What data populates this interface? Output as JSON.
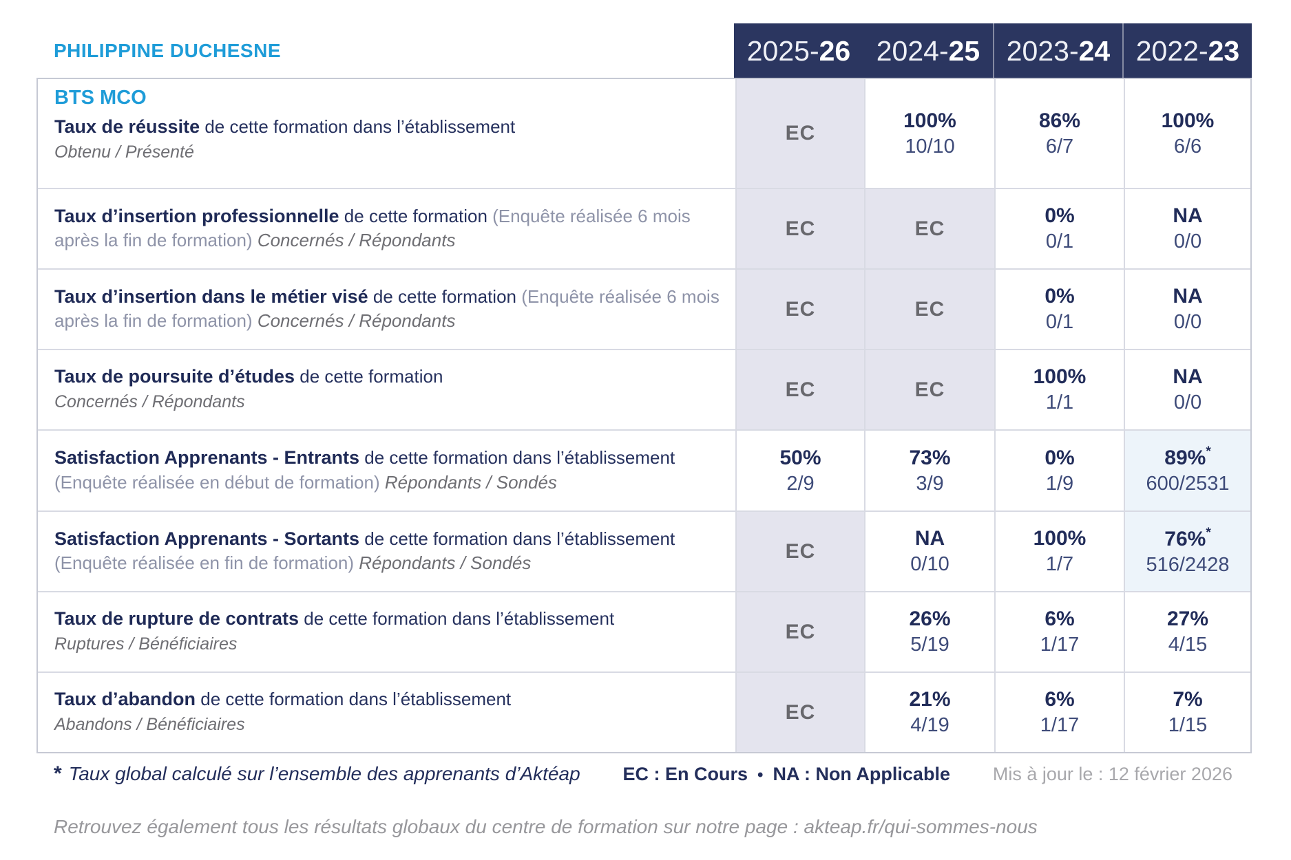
{
  "establishment": "PHILIPPINE DUCHESNE",
  "table": {
    "columns": [
      {
        "year": "2025-",
        "year_bold": "26"
      },
      {
        "year": "2024-",
        "year_bold": "25"
      },
      {
        "year": "2023-",
        "year_bold": "24"
      },
      {
        "year": "2022-",
        "year_bold": "23"
      }
    ],
    "rows": [
      {
        "program": "BTS MCO",
        "title": "Taux de réussite",
        "mid": " de cette formation dans l’établissement",
        "paren": "",
        "sub": "Obtenu / Présenté",
        "sub_inline": false,
        "cells": [
          {
            "type": "ec",
            "text": "EC"
          },
          {
            "type": "value",
            "pct": "100%",
            "frac": "10/10"
          },
          {
            "type": "value",
            "pct": "86%",
            "frac": "6/7"
          },
          {
            "type": "value",
            "pct": "100%",
            "frac": "6/6"
          }
        ]
      },
      {
        "program": "",
        "title": "Taux d’insertion professionnelle",
        "mid": " de cette formation ",
        "paren": "(Enquête réalisée 6 mois après la fin de formation) ",
        "sub": "Concernés / Répondants",
        "sub_inline": true,
        "cells": [
          {
            "type": "ec",
            "text": "EC"
          },
          {
            "type": "ec",
            "text": "EC"
          },
          {
            "type": "value",
            "pct": "0%",
            "frac": "0/1"
          },
          {
            "type": "value",
            "pct": "NA",
            "frac": "0/0"
          }
        ]
      },
      {
        "program": "",
        "title": "Taux d’insertion dans le métier visé",
        "mid": " de cette formation ",
        "paren": "(Enquête réalisée 6 mois après la fin de formation) ",
        "sub": "Concernés / Répondants",
        "sub_inline": true,
        "cells": [
          {
            "type": "ec",
            "text": "EC"
          },
          {
            "type": "ec",
            "text": "EC"
          },
          {
            "type": "value",
            "pct": "0%",
            "frac": "0/1"
          },
          {
            "type": "value",
            "pct": "NA",
            "frac": "0/0"
          }
        ]
      },
      {
        "program": "",
        "title": "Taux de poursuite d’études",
        "mid": " de cette formation",
        "paren": "",
        "sub": "Concernés / Répondants",
        "sub_inline": false,
        "cells": [
          {
            "type": "ec",
            "text": "EC"
          },
          {
            "type": "ec",
            "text": "EC"
          },
          {
            "type": "value",
            "pct": "100%",
            "frac": "1/1"
          },
          {
            "type": "value",
            "pct": "NA",
            "frac": "0/0"
          }
        ]
      },
      {
        "program": "",
        "title": "Satisfaction Apprenants - Entrants",
        "mid": " de cette formation dans l’établissement ",
        "paren": "(Enquête réalisée en début de formation) ",
        "sub": "Répondants / Sondés",
        "sub_inline": true,
        "cells": [
          {
            "type": "value",
            "pct": "50%",
            "frac": "2/9"
          },
          {
            "type": "value",
            "pct": "73%",
            "frac": "3/9"
          },
          {
            "type": "value",
            "pct": "0%",
            "frac": "1/9"
          },
          {
            "type": "value",
            "pct": "89%",
            "frac": "600/2531",
            "star": true,
            "highlight": true
          }
        ]
      },
      {
        "program": "",
        "title": "Satisfaction Apprenants - Sortants",
        "mid": " de cette formation dans l’établissement ",
        "paren": "(Enquête réalisée en fin de formation) ",
        "sub": "Répondants / Sondés",
        "sub_inline": true,
        "cells": [
          {
            "type": "ec",
            "text": "EC"
          },
          {
            "type": "value",
            "pct": "NA",
            "frac": "0/10"
          },
          {
            "type": "value",
            "pct": "100%",
            "frac": "1/7"
          },
          {
            "type": "value",
            "pct": "76%",
            "frac": "516/2428",
            "star": true,
            "highlight": true
          }
        ]
      },
      {
        "program": "",
        "title": "Taux de rupture de contrats",
        "mid": " de cette formation dans l’établissement",
        "paren": "",
        "sub": "Ruptures / Bénéficiaires",
        "sub_inline": false,
        "cells": [
          {
            "type": "ec",
            "text": "EC"
          },
          {
            "type": "value",
            "pct": "26%",
            "frac": "5/19"
          },
          {
            "type": "value",
            "pct": "6%",
            "frac": "1/17"
          },
          {
            "type": "value",
            "pct": "27%",
            "frac": "4/15"
          }
        ]
      },
      {
        "program": "",
        "title": "Taux d’abandon",
        "mid": " de cette formation dans l’établissement",
        "paren": "",
        "sub": "Abandons / Bénéficiaires",
        "sub_inline": false,
        "cells": [
          {
            "type": "ec",
            "text": "EC"
          },
          {
            "type": "value",
            "pct": "21%",
            "frac": "4/19"
          },
          {
            "type": "value",
            "pct": "6%",
            "frac": "1/17"
          },
          {
            "type": "value",
            "pct": "7%",
            "frac": "1/15"
          }
        ]
      }
    ]
  },
  "footer": {
    "footnote_star": "*",
    "footnote": "Taux global calculé sur l’ensemble des apprenants d’Aktéap",
    "legend_ec": "EC : En Cours",
    "legend_bullet": "•",
    "legend_na": "NA : Non Applicable",
    "updated": "Mis à jour le : 12 février 2026",
    "bottom_note": "Retrouvez également tous les résultats globaux du centre de formation sur notre page : akteap.fr/qui-sommes-nous"
  },
  "colors": {
    "accent_cyan": "#1e9cd8",
    "header_navy": "#2b3660",
    "text_navy": "#212c59",
    "ec_cell_bg": "#e4e4ee",
    "highlight_cell_bg": "#edf4fa"
  }
}
